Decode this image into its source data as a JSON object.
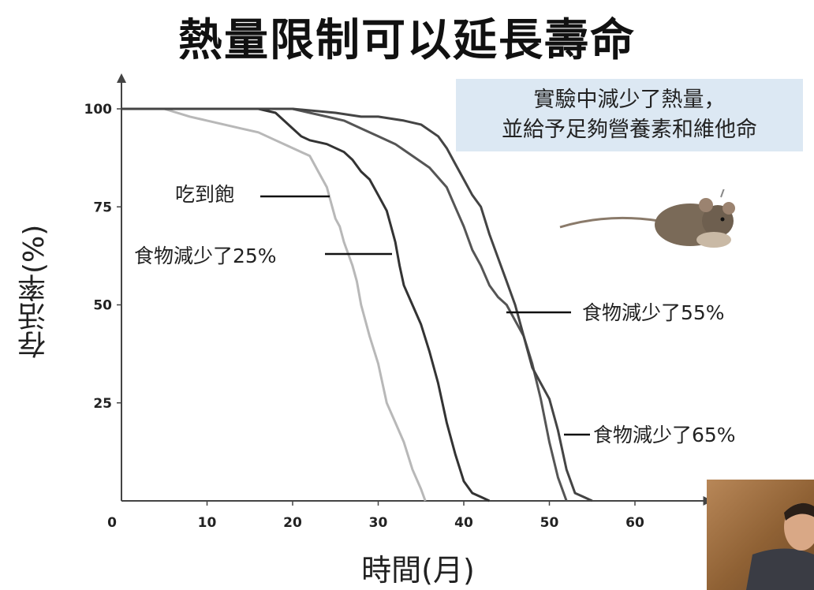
{
  "title": "熱量限制可以延長壽命",
  "callout": {
    "line1": "實驗中減少了熱量，",
    "line2": "並給予足夠營養素和維他命"
  },
  "chart_data": {
    "type": "line",
    "xlabel": "時間(月)",
    "ylabel": "存活率(%)",
    "xlim": [
      0,
      70
    ],
    "ylim": [
      0,
      100
    ],
    "xticks": [
      0,
      10,
      20,
      30,
      40,
      50,
      60
    ],
    "yticks": [
      25,
      50,
      75,
      100
    ],
    "grid": false,
    "series": [
      {
        "name": "吃到飽",
        "color": "#b8b8b8",
        "x": [
          0,
          5,
          8,
          10,
          12,
          14,
          16,
          18,
          19,
          20,
          21,
          22,
          23,
          24,
          24.5,
          25,
          25.5,
          26,
          27,
          27.5,
          28,
          28.5,
          29,
          30,
          30.5,
          31,
          32,
          33,
          34,
          35,
          35.5
        ],
        "y": [
          100,
          100,
          98,
          97,
          96,
          95,
          94,
          92,
          91,
          90,
          89,
          88,
          84,
          80,
          76,
          72,
          70,
          66,
          60,
          56,
          50,
          46,
          42,
          35,
          30,
          25,
          20,
          15,
          8,
          3,
          0
        ]
      },
      {
        "name": "食物減少了25%",
        "color": "#333333",
        "x": [
          0,
          10,
          16,
          18,
          19,
          20,
          21,
          22,
          24,
          26,
          27,
          28,
          29,
          30,
          31,
          31.5,
          32,
          32.5,
          33,
          34,
          35,
          36,
          37,
          38,
          39,
          40,
          41,
          42,
          43
        ],
        "y": [
          100,
          100,
          100,
          99,
          97,
          95,
          93,
          92,
          91,
          89,
          87,
          84,
          82,
          78,
          74,
          70,
          66,
          60,
          55,
          50,
          45,
          38,
          30,
          20,
          12,
          5,
          2,
          1,
          0
        ]
      },
      {
        "name": "食物減少了55%",
        "color": "#555555",
        "x": [
          0,
          20,
          22,
          24,
          26,
          28,
          30,
          32,
          34,
          36,
          38,
          39,
          40,
          41,
          42,
          43,
          44,
          45,
          46,
          47,
          48,
          49,
          50,
          51,
          52
        ],
        "y": [
          100,
          100,
          99,
          98,
          97,
          95,
          93,
          91,
          88,
          85,
          80,
          75,
          70,
          64,
          60,
          55,
          52,
          50,
          46,
          42,
          35,
          26,
          15,
          6,
          0
        ]
      },
      {
        "name": "食物減少了65%",
        "color": "#444444",
        "x": [
          0,
          20,
          25,
          28,
          30,
          33,
          35,
          37,
          38,
          39,
          40,
          41,
          42,
          43,
          44,
          45,
          46,
          47,
          48,
          49,
          50,
          51,
          52,
          53,
          54,
          55
        ],
        "y": [
          100,
          100,
          99,
          98,
          98,
          97,
          96,
          93,
          90,
          86,
          82,
          78,
          75,
          68,
          62,
          56,
          50,
          42,
          34,
          30,
          26,
          18,
          8,
          2,
          1,
          0
        ]
      }
    ]
  }
}
